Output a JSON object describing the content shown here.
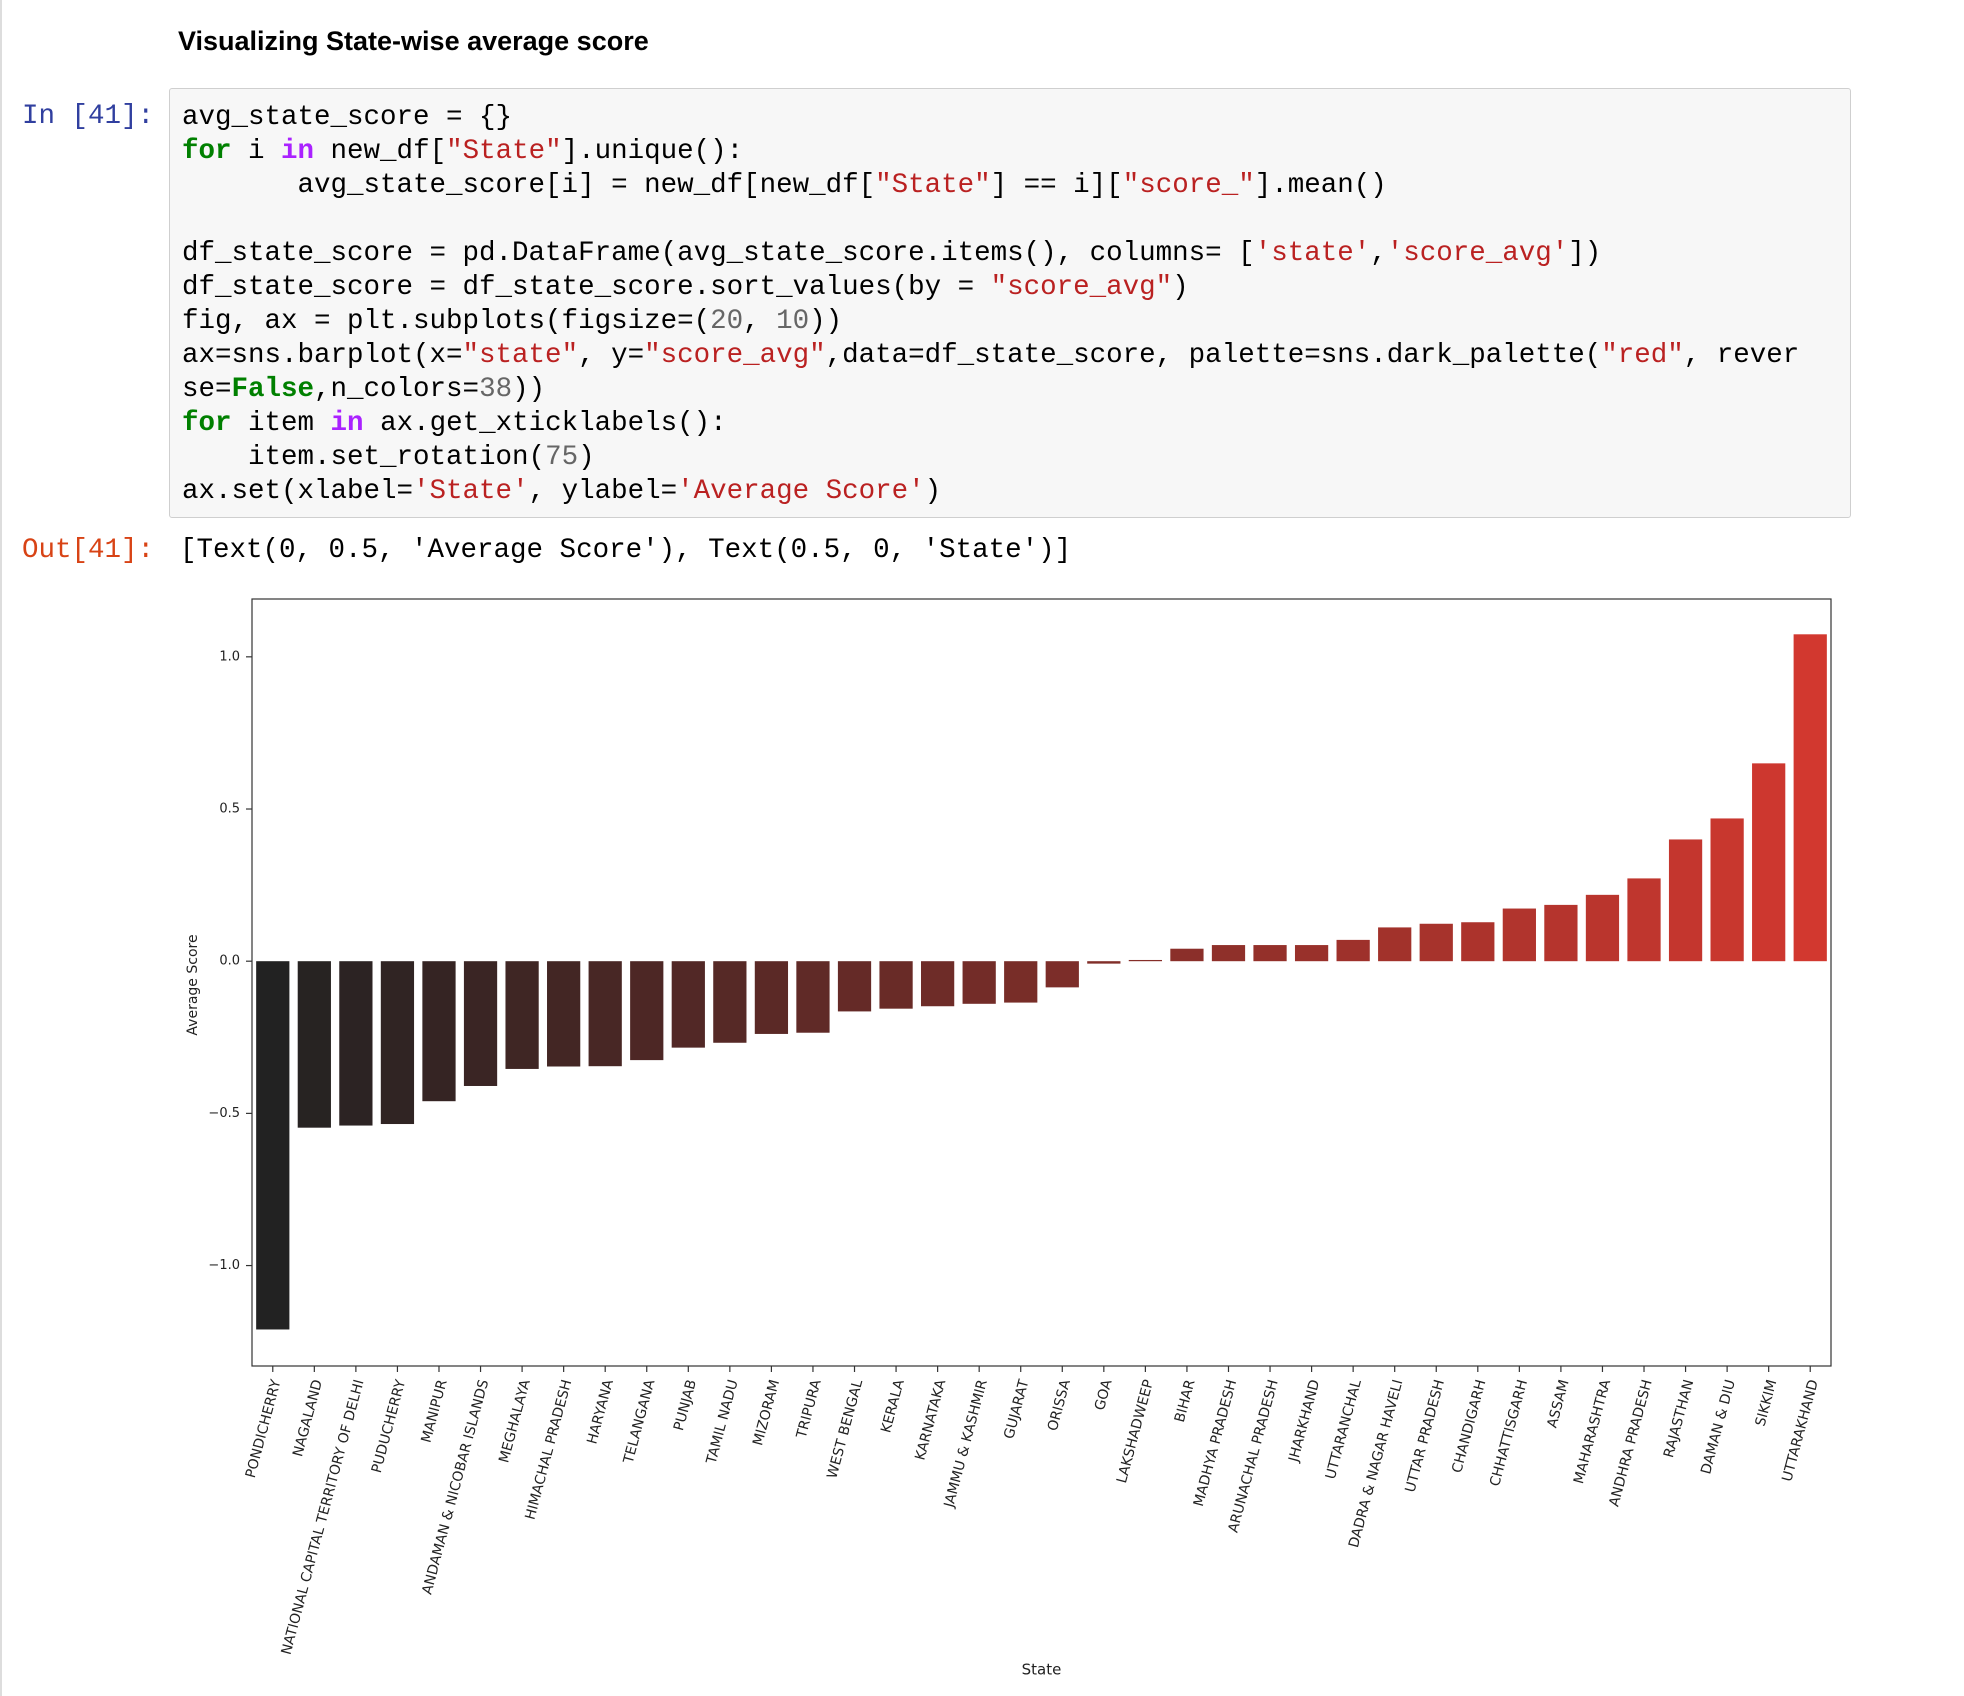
{
  "heading": "Visualizing State-wise average score",
  "input": {
    "prompt": "In [41]:",
    "lines": [
      [
        "avg_state_score = {}"
      ],
      [
        "for",
        " i ",
        "in",
        " new_df[",
        "\"State\"",
        "].unique():"
      ],
      [
        "       avg_state_score[i] = new_df[new_df[",
        "\"State\"",
        "] == i][",
        "\"score_\"",
        "].mean()"
      ],
      [],
      [
        "df_state_score = pd.DataFrame(avg_state_score.items(), columns= [",
        "'state'",
        ",",
        "'score_avg'",
        "])"
      ],
      [
        "df_state_score = df_state_score.sort_values(by = ",
        "\"score_avg\"",
        ")"
      ],
      [
        "fig, ax = plt.subplots(figsize=(",
        "20",
        ", ",
        "10",
        "))"
      ],
      [
        "ax=sns.barplot(x=",
        "\"state\"",
        ", y=",
        "\"score_avg\"",
        ",data=df_state_score, palette=sns.dark_palette(",
        "\"red\"",
        ", rever"
      ],
      [
        "se=",
        "False",
        ",n_colors=",
        "38",
        "))"
      ],
      [
        "for",
        " item ",
        "in",
        " ax.get_xticklabels():"
      ],
      [
        "    item.set_rotation(",
        "75",
        ")"
      ],
      [
        "ax.set(xlabel=",
        "'State'",
        ", ylabel=",
        "'Average Score'",
        ")"
      ]
    ]
  },
  "output": {
    "prompt": "Out[41]:",
    "text": "[Text(0, 0.5, 'Average Score'), Text(0.5, 0, 'State')]"
  },
  "chart_data": {
    "type": "bar",
    "xlabel": "State",
    "ylabel": "Average Score",
    "categories": [
      "PONDICHERRY",
      "NAGALAND",
      "NATIONAL CAPITAL TERRITORY OF DELHI",
      "PUDUCHERRY",
      "MANIPUR",
      "ANDAMAN & NICOBAR ISLANDS",
      "MEGHALAYA",
      "HIMACHAL PRADESH",
      "HARYANA",
      "TELANGANA",
      "PUNJAB",
      "TAMIL NADU",
      "MIZORAM",
      "TRIPURA",
      "WEST BENGAL",
      "KERALA",
      "KARNATAKA",
      "JAMMU & KASHMIR",
      "GUJARAT",
      "ORISSA",
      "GOA",
      "LAKSHADWEEP",
      "BIHAR",
      "MADHYA PRADESH",
      "ARUNACHAL PRADESH",
      "JHARKHAND",
      "UTTARANCHAL",
      "DADRA & NAGAR HAVELI",
      "UTTAR PRADESH",
      "CHANDIGARH",
      "CHHATTISGARH",
      "ASSAM",
      "MAHARASHTRA",
      "ANDHRA PRADESH",
      "RAJASTHAN",
      "DAMAN & DIU",
      "SIKKIM",
      "UTTARAKHAND"
    ],
    "values": [
      -1.21,
      -0.547,
      -0.54,
      -0.535,
      -0.46,
      -0.41,
      -0.354,
      -0.346,
      -0.345,
      -0.325,
      -0.284,
      -0.268,
      -0.239,
      -0.235,
      -0.165,
      -0.156,
      -0.148,
      -0.14,
      -0.136,
      -0.086,
      -0.008,
      0.004,
      0.041,
      0.053,
      0.053,
      0.053,
      0.07,
      0.111,
      0.123,
      0.128,
      0.173,
      0.185,
      0.218,
      0.272,
      0.4,
      0.469,
      0.65,
      1.074
    ],
    "palette": [
      "#222222",
      "#d2382f"
    ],
    "ylim": [
      -1.33,
      1.19
    ],
    "yticks": [
      {
        "value": -1,
        "label": "−1.0"
      },
      {
        "value": -0.5,
        "label": "−0.5"
      },
      {
        "value": 0,
        "label": "0.0"
      },
      {
        "value": 0.5,
        "label": "0.5"
      },
      {
        "value": 1,
        "label": "1.0"
      }
    ]
  }
}
